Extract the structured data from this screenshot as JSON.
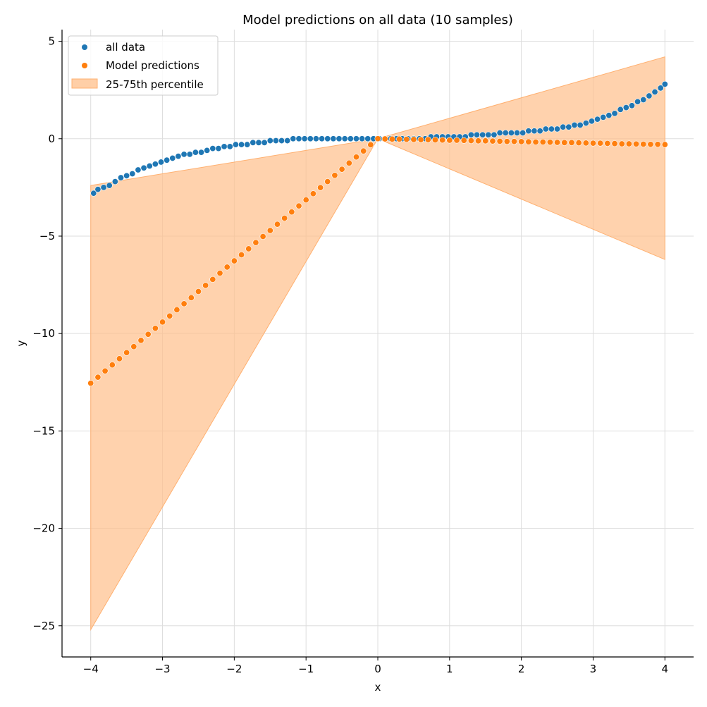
{
  "chart_data": {
    "type": "scatter",
    "title": "Model predictions on all data (10 samples)",
    "xlabel": "x",
    "ylabel": "y",
    "xlim": [
      -4.4,
      4.4
    ],
    "ylim": [
      -26.6,
      5.6
    ],
    "xticks": [
      -4,
      -3,
      -2,
      -1,
      0,
      1,
      2,
      3,
      4
    ],
    "yticks": [
      5,
      0,
      -5,
      -10,
      -15,
      -20,
      -25
    ],
    "xtick_labels": [
      "−4",
      "−3",
      "−2",
      "−1",
      "0",
      "1",
      "2",
      "3",
      "4"
    ],
    "ytick_labels": [
      "5",
      "0",
      "−5",
      "−10",
      "−15",
      "−20",
      "−25"
    ],
    "grid": true,
    "legend_position": "top-left",
    "series": [
      {
        "name": "all data",
        "kind": "scatter",
        "color": "#1f77b4",
        "x": [
          -3.96,
          -3.9,
          -3.82,
          -3.74,
          -3.66,
          -3.58,
          -3.5,
          -3.42,
          -3.34,
          -3.26,
          -3.18,
          -3.1,
          -3.02,
          -2.94,
          -2.86,
          -2.78,
          -2.7,
          -2.62,
          -2.54,
          -2.46,
          -2.38,
          -2.3,
          -2.22,
          -2.14,
          -2.06,
          -1.98,
          -1.9,
          -1.82,
          -1.74,
          -1.66,
          -1.58,
          -1.5,
          -1.42,
          -1.34,
          -1.26,
          -1.18,
          -1.1,
          -1.02,
          -0.94,
          -0.86,
          -0.78,
          -0.7,
          -0.62,
          -0.54,
          -0.46,
          -0.38,
          -0.3,
          -0.22,
          -0.14,
          -0.06,
          0.02,
          0.1,
          0.18,
          0.26,
          0.34,
          0.42,
          0.5,
          0.58,
          0.66,
          0.74,
          0.82,
          0.9,
          0.98,
          1.06,
          1.14,
          1.22,
          1.3,
          1.38,
          1.46,
          1.54,
          1.62,
          1.7,
          1.78,
          1.86,
          1.94,
          2.02,
          2.1,
          2.18,
          2.26,
          2.34,
          2.42,
          2.5,
          2.58,
          2.66,
          2.74,
          2.82,
          2.9,
          2.98,
          3.06,
          3.14,
          3.22,
          3.3,
          3.38,
          3.46,
          3.54,
          3.62,
          3.7,
          3.78,
          3.86,
          3.94,
          4.0
        ],
        "y": [
          -2.8,
          -2.6,
          -2.5,
          -2.4,
          -2.2,
          -2.0,
          -1.9,
          -1.8,
          -1.6,
          -1.5,
          -1.4,
          -1.3,
          -1.2,
          -1.1,
          -1.0,
          -0.9,
          -0.8,
          -0.8,
          -0.7,
          -0.7,
          -0.6,
          -0.5,
          -0.5,
          -0.4,
          -0.4,
          -0.3,
          -0.3,
          -0.3,
          -0.2,
          -0.2,
          -0.2,
          -0.1,
          -0.1,
          -0.1,
          -0.1,
          0.0,
          0.0,
          0.0,
          0.0,
          0.0,
          0.0,
          0.0,
          0.0,
          0.0,
          0.0,
          0.0,
          0.0,
          0.0,
          0.0,
          0.0,
          0.0,
          0.0,
          0.0,
          0.0,
          0.0,
          0.0,
          0.0,
          0.0,
          0.0,
          0.1,
          0.1,
          0.1,
          0.1,
          0.1,
          0.1,
          0.1,
          0.2,
          0.2,
          0.2,
          0.2,
          0.2,
          0.3,
          0.3,
          0.3,
          0.3,
          0.3,
          0.4,
          0.4,
          0.4,
          0.5,
          0.5,
          0.5,
          0.6,
          0.6,
          0.7,
          0.7,
          0.8,
          0.9,
          1.0,
          1.1,
          1.2,
          1.3,
          1.5,
          1.6,
          1.7,
          1.9,
          2.0,
          2.2,
          2.4,
          2.6,
          2.8
        ]
      },
      {
        "name": "Model predictions",
        "kind": "scatter",
        "color": "#ff7f0e",
        "x": [
          -4.0,
          -3.9,
          -3.8,
          -3.7,
          -3.6,
          -3.5,
          -3.4,
          -3.3,
          -3.2,
          -3.1,
          -3.0,
          -2.9,
          -2.8,
          -2.7,
          -2.6,
          -2.5,
          -2.4,
          -2.3,
          -2.2,
          -2.1,
          -2.0,
          -1.9,
          -1.8,
          -1.7,
          -1.6,
          -1.5,
          -1.4,
          -1.3,
          -1.2,
          -1.1,
          -1.0,
          -0.9,
          -0.8,
          -0.7,
          -0.6,
          -0.5,
          -0.4,
          -0.3,
          -0.2,
          -0.1,
          0.0,
          0.1,
          0.2,
          0.3,
          0.4,
          0.5,
          0.6,
          0.7,
          0.8,
          0.9,
          1.0,
          1.1,
          1.2,
          1.3,
          1.4,
          1.5,
          1.6,
          1.7,
          1.8,
          1.9,
          2.0,
          2.1,
          2.2,
          2.3,
          2.4,
          2.5,
          2.6,
          2.7,
          2.8,
          2.9,
          3.0,
          3.1,
          3.2,
          3.3,
          3.4,
          3.5,
          3.6,
          3.7,
          3.8,
          3.9,
          4.0
        ],
        "y": [
          -12.55,
          -12.24,
          -11.92,
          -11.61,
          -11.29,
          -10.98,
          -10.67,
          -10.35,
          -10.04,
          -9.73,
          -9.41,
          -9.1,
          -8.78,
          -8.47,
          -8.16,
          -7.84,
          -7.53,
          -7.22,
          -6.9,
          -6.59,
          -6.27,
          -5.96,
          -5.65,
          -5.33,
          -5.02,
          -4.71,
          -4.39,
          -4.08,
          -3.76,
          -3.45,
          -3.14,
          -2.82,
          -2.51,
          -2.2,
          -1.88,
          -1.57,
          -1.25,
          -0.94,
          -0.63,
          -0.31,
          0.0,
          -0.01,
          -0.02,
          -0.02,
          -0.03,
          -0.04,
          -0.05,
          -0.05,
          -0.06,
          -0.07,
          -0.08,
          -0.08,
          -0.09,
          -0.1,
          -0.11,
          -0.11,
          -0.12,
          -0.13,
          -0.14,
          -0.14,
          -0.15,
          -0.16,
          -0.17,
          -0.17,
          -0.18,
          -0.19,
          -0.2,
          -0.2,
          -0.21,
          -0.22,
          -0.23,
          -0.23,
          -0.24,
          -0.25,
          -0.26,
          -0.26,
          -0.27,
          -0.28,
          -0.29,
          -0.29,
          -0.3
        ]
      },
      {
        "name": "25-75th percentile",
        "kind": "band",
        "color": "#ffbf8a",
        "x": [
          -4.0,
          0.0,
          4.0
        ],
        "lower": [
          -25.2,
          0.0,
          -6.2
        ],
        "upper": [
          -2.4,
          0.0,
          4.2
        ]
      }
    ]
  }
}
